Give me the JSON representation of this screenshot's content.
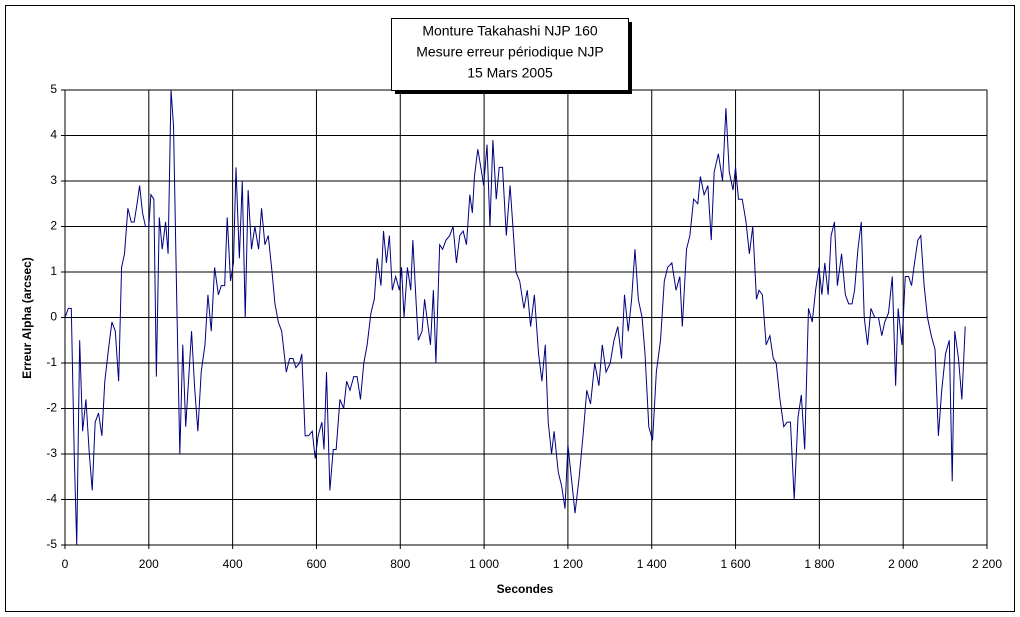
{
  "chart_data": {
    "type": "line",
    "title": [
      "Monture Takahashi NJP 160",
      "Mesure erreur périodique NJP",
      "15 Mars 2005"
    ],
    "x_label": "Secondes",
    "y_label": "Erreur Alpha (arcsec)",
    "color": "#000080",
    "grid": true,
    "xlim": [
      0,
      2200
    ],
    "ylim": [
      -5,
      5
    ],
    "xticks": [
      0,
      200,
      400,
      600,
      800,
      {
        "value": 1000,
        "label": "1 000"
      },
      {
        "value": 1200,
        "label": "1 200"
      },
      {
        "value": 1400,
        "label": "1 400"
      },
      {
        "value": 1600,
        "label": "1 600"
      },
      {
        "value": 1800,
        "label": "1 800"
      },
      {
        "value": 2000,
        "label": "2 000"
      },
      {
        "value": 2200,
        "label": "2 200"
      }
    ],
    "yticks": [
      -5,
      -4,
      -3,
      -2,
      -1,
      0,
      1,
      2,
      3,
      4,
      5
    ],
    "x": [
      0,
      8,
      15,
      22,
      28,
      35,
      42,
      50,
      58,
      65,
      72,
      80,
      88,
      95,
      105,
      112,
      120,
      128,
      135,
      142,
      150,
      158,
      165,
      172,
      178,
      185,
      192,
      200,
      205,
      212,
      218,
      225,
      232,
      240,
      246,
      253,
      259,
      267,
      274,
      281,
      288,
      296,
      302,
      309,
      317,
      325,
      334,
      341,
      349,
      357,
      366,
      373,
      381,
      387,
      395,
      402,
      408,
      416,
      423,
      430,
      437,
      445,
      453,
      462,
      469,
      477,
      485,
      494,
      501,
      509,
      517,
      528,
      536,
      544,
      551,
      560,
      565,
      573,
      581,
      590,
      597,
      604,
      613,
      618,
      624,
      632,
      640,
      647,
      656,
      665,
      672,
      680,
      689,
      697,
      705,
      713,
      721,
      730,
      738,
      745,
      754,
      760,
      767,
      774,
      781,
      789,
      798,
      803,
      809,
      817,
      825,
      830,
      838,
      843,
      852,
      858,
      865,
      872,
      879,
      885,
      894,
      901,
      909,
      918,
      926,
      934,
      942,
      950,
      958,
      966,
      972,
      977,
      985,
      994,
      999,
      1007,
      1014,
      1021,
      1029,
      1036,
      1044,
      1053,
      1062,
      1068,
      1076,
      1085,
      1095,
      1103,
      1111,
      1120,
      1130,
      1138,
      1146,
      1153,
      1161,
      1167,
      1177,
      1185,
      1193,
      1200,
      1208,
      1217,
      1227,
      1237,
      1245,
      1254,
      1264,
      1274,
      1282,
      1291,
      1301,
      1310,
      1319,
      1328,
      1335,
      1344,
      1352,
      1360,
      1368,
      1377,
      1384,
      1393,
      1402,
      1411,
      1421,
      1430,
      1438,
      1448,
      1458,
      1467,
      1473,
      1483,
      1491,
      1500,
      1510,
      1516,
      1525,
      1534,
      1542,
      1549,
      1559,
      1569,
      1577,
      1585,
      1594,
      1600,
      1607,
      1616,
      1625,
      1633,
      1641,
      1650,
      1656,
      1664,
      1673,
      1682,
      1690,
      1697,
      1706,
      1715,
      1723,
      1731,
      1740,
      1749,
      1757,
      1765,
      1774,
      1783,
      1791,
      1799,
      1806,
      1813,
      1821,
      1828,
      1836,
      1843,
      1853,
      1862,
      1870,
      1878,
      1884,
      1892,
      1900,
      1907,
      1915,
      1923,
      1932,
      1941,
      1949,
      1956,
      1965,
      1974,
      1982,
      1988,
      1997,
      2005,
      2013,
      2020,
      2027,
      2035,
      2042,
      2050,
      2058,
      2067,
      2076,
      2084,
      2092,
      2101,
      2110,
      2117,
      2123,
      2132,
      2140,
      2148
    ],
    "values": [
      0,
      0.2,
      0.2,
      -3,
      -5,
      -0.5,
      -2.5,
      -1.8,
      -3,
      -3.8,
      -2.3,
      -2.1,
      -2.6,
      -1.4,
      -0.6,
      -0.1,
      -0.3,
      -1.4,
      1.1,
      1.4,
      2.4,
      2.1,
      2.1,
      2.5,
      2.9,
      2.3,
      2.0,
      2.0,
      2.7,
      2.6,
      -1.3,
      2.2,
      1.5,
      2.1,
      1.4,
      5,
      4.2,
      0.2,
      -3,
      -0.6,
      -2.4,
      -1.2,
      -0.3,
      -1.5,
      -2.5,
      -1.2,
      -0.6,
      0.5,
      -0.3,
      1.1,
      0.5,
      0.7,
      0.7,
      2.2,
      0.8,
      1.2,
      3.3,
      1.3,
      3.0,
      0,
      2.8,
      1.5,
      2.0,
      1.5,
      2.4,
      1.6,
      1.8,
      1.0,
      0.3,
      -0.1,
      -0.3,
      -1.2,
      -0.9,
      -0.9,
      -1.1,
      -1.0,
      -0.8,
      -2.6,
      -2.6,
      -2.5,
      -3.1,
      -2.6,
      -2.3,
      -2.9,
      -1.2,
      -3.8,
      -2.9,
      -2.9,
      -1.8,
      -2.0,
      -1.4,
      -1.6,
      -1.3,
      -1.3,
      -1.8,
      -1.0,
      -0.6,
      0.1,
      0.4,
      1.3,
      0.7,
      1.9,
      1.2,
      1.8,
      0.6,
      0.9,
      0.6,
      1.1,
      0,
      1.1,
      0.6,
      1.7,
      0.3,
      -0.5,
      -0.3,
      0.4,
      -0.1,
      -0.6,
      0.6,
      -1.0,
      1.6,
      1.5,
      1.7,
      1.8,
      2.0,
      1.2,
      1.8,
      1.9,
      1.6,
      2.7,
      2.3,
      3.1,
      3.7,
      3.2,
      2.9,
      3.8,
      2.0,
      3.9,
      2.6,
      3.3,
      3.3,
      1.8,
      2.9,
      2.1,
      1.0,
      0.8,
      0.2,
      0.6,
      -0.2,
      0.5,
      -0.8,
      -1.4,
      -0.6,
      -2.3,
      -3.0,
      -2.5,
      -3.4,
      -3.7,
      -4.2,
      -2.8,
      -3.5,
      -4.3,
      -3.5,
      -2.5,
      -1.6,
      -1.9,
      -1.0,
      -1.5,
      -0.6,
      -1.2,
      -1.0,
      -0.5,
      -0.2,
      -0.9,
      0.5,
      -0.3,
      0.4,
      1.5,
      0.4,
      0.0,
      -0.8,
      -2.4,
      -2.7,
      -1.2,
      -0.5,
      0.8,
      1.1,
      1.2,
      0.6,
      0.9,
      -0.2,
      1.5,
      1.8,
      2.6,
      2.5,
      3.1,
      2.7,
      2.9,
      1.7,
      3.2,
      3.6,
      3.0,
      4.6,
      3.2,
      2.8,
      3.3,
      2.6,
      2.6,
      2.1,
      1.4,
      2.0,
      0.4,
      0.6,
      0.5,
      -0.6,
      -0.4,
      -0.9,
      -1.0,
      -1.8,
      -2.4,
      -2.3,
      -2.3,
      -4.0,
      -2.2,
      -1.7,
      -2.9,
      0.2,
      -0.1,
      0.6,
      1.1,
      0.5,
      1.2,
      0.5,
      1.8,
      2.1,
      0.7,
      1.4,
      0.5,
      0.3,
      0.3,
      0.6,
      1.5,
      2.1,
      0.0,
      -0.6,
      0.2,
      0.0,
      0.0,
      -0.4,
      -0.1,
      0.1,
      0.9,
      -1.5,
      0.2,
      -0.6,
      0.9,
      0.9,
      0.7,
      1.2,
      1.7,
      1.8,
      0.7,
      0.0,
      -0.4,
      -0.7,
      -2.6,
      -1.6,
      -0.8,
      -0.5,
      -3.6,
      -0.3,
      -0.9,
      -1.8,
      -0.2
    ]
  }
}
